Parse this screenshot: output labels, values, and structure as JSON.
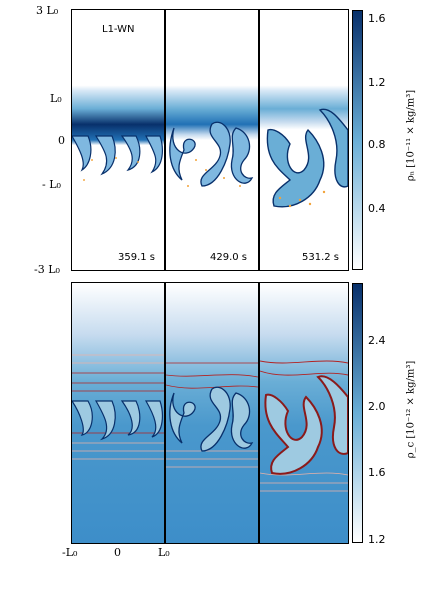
{
  "figure": {
    "run_label": "L1-WN",
    "top": {
      "times": [
        "359.1 s",
        "429.0 s",
        "531.2 s"
      ],
      "y_ticks": [
        "3 L₀",
        "L₀",
        "0",
        "- L₀",
        "-3 L₀"
      ],
      "colorbar": {
        "ticks": [
          "1.6",
          "1.2",
          "0.8",
          "0.4"
        ],
        "label": "ρₙ [10⁻¹¹ × kg/m³]",
        "colors": [
          "#ffffff",
          "#6aaed6",
          "#08306b"
        ]
      }
    },
    "bottom": {
      "x_ticks": [
        "-L₀",
        "0",
        "L₀"
      ],
      "colorbar": {
        "ticks": [
          "2.4",
          "2.0",
          "1.6",
          "1.2"
        ],
        "label": "ρ_c [10⁻¹² × kg/m³]",
        "colors": [
          "#ffffff",
          "#6aaed6",
          "#08306b"
        ]
      },
      "field_line_colors": [
        "#b22222",
        "#d46a5a",
        "#e8b2a8"
      ]
    }
  }
}
